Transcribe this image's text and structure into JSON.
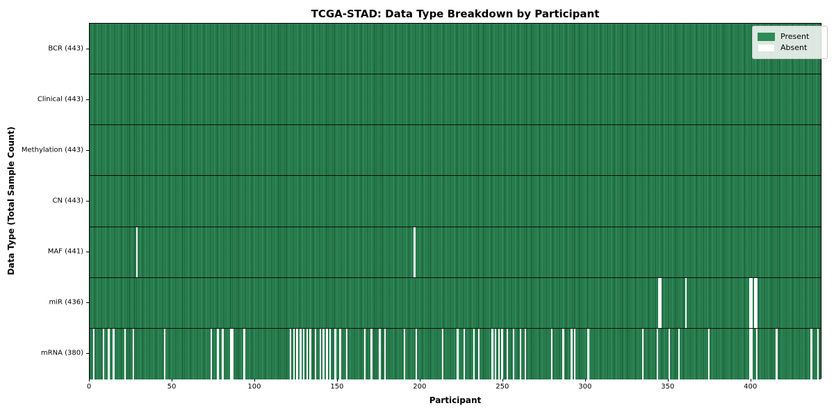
{
  "chart_data": {
    "type": "heatmap",
    "title": "TCGA-STAD: Data Type Breakdown by Participant",
    "xlabel": "Participant",
    "ylabel": "Data Type (Total Sample Count)",
    "n_participants": 443,
    "x_range": [
      0,
      443
    ],
    "x_ticks": [
      0,
      50,
      100,
      150,
      200,
      250,
      300,
      350,
      400
    ],
    "grid": false,
    "legend_position": "upper right",
    "legend": [
      {
        "label": "Present",
        "color": "#2e8b57"
      },
      {
        "label": "Absent",
        "color": "#ffffff"
      }
    ],
    "colors": {
      "present": "#2e8b57",
      "absent": "#ffffff",
      "cell_edge": "#1a5236",
      "row_divider": "#0d0d0d",
      "legend_border": "#c9c9c9"
    },
    "rows": [
      {
        "label": "BCR (443)",
        "data_type": "BCR",
        "present_count": 443,
        "absent_participants": []
      },
      {
        "label": "Clinical (443)",
        "data_type": "Clinical",
        "present_count": 443,
        "absent_participants": []
      },
      {
        "label": "Methylation (443)",
        "data_type": "Methylation",
        "present_count": 443,
        "absent_participants": []
      },
      {
        "label": "CN (443)",
        "data_type": "CN",
        "present_count": 443,
        "absent_participants": []
      },
      {
        "label": "MAF (441)",
        "data_type": "MAF",
        "present_count": 441,
        "absent_participants": [
          28,
          196
        ]
      },
      {
        "label": "miR (436)",
        "data_type": "miR",
        "present_count": 436,
        "absent_participants": [
          344,
          345,
          360,
          399,
          400,
          402,
          403
        ]
      },
      {
        "label": "mRNA (380)",
        "data_type": "mRNA",
        "present_count": 380,
        "absent_participants": [
          2,
          8,
          11,
          14,
          21,
          26,
          45,
          73,
          77,
          80,
          85,
          86,
          93,
          121,
          123,
          125,
          127,
          129,
          131,
          133,
          136,
          139,
          141,
          143,
          145,
          148,
          151,
          155,
          166,
          170,
          175,
          178,
          190,
          197,
          213,
          222,
          226,
          232,
          235,
          243,
          245,
          247,
          249,
          252,
          256,
          260,
          263,
          279,
          286,
          291,
          293,
          301,
          334,
          343,
          350,
          356,
          374,
          399,
          400,
          403,
          415,
          436,
          440
        ]
      }
    ]
  }
}
